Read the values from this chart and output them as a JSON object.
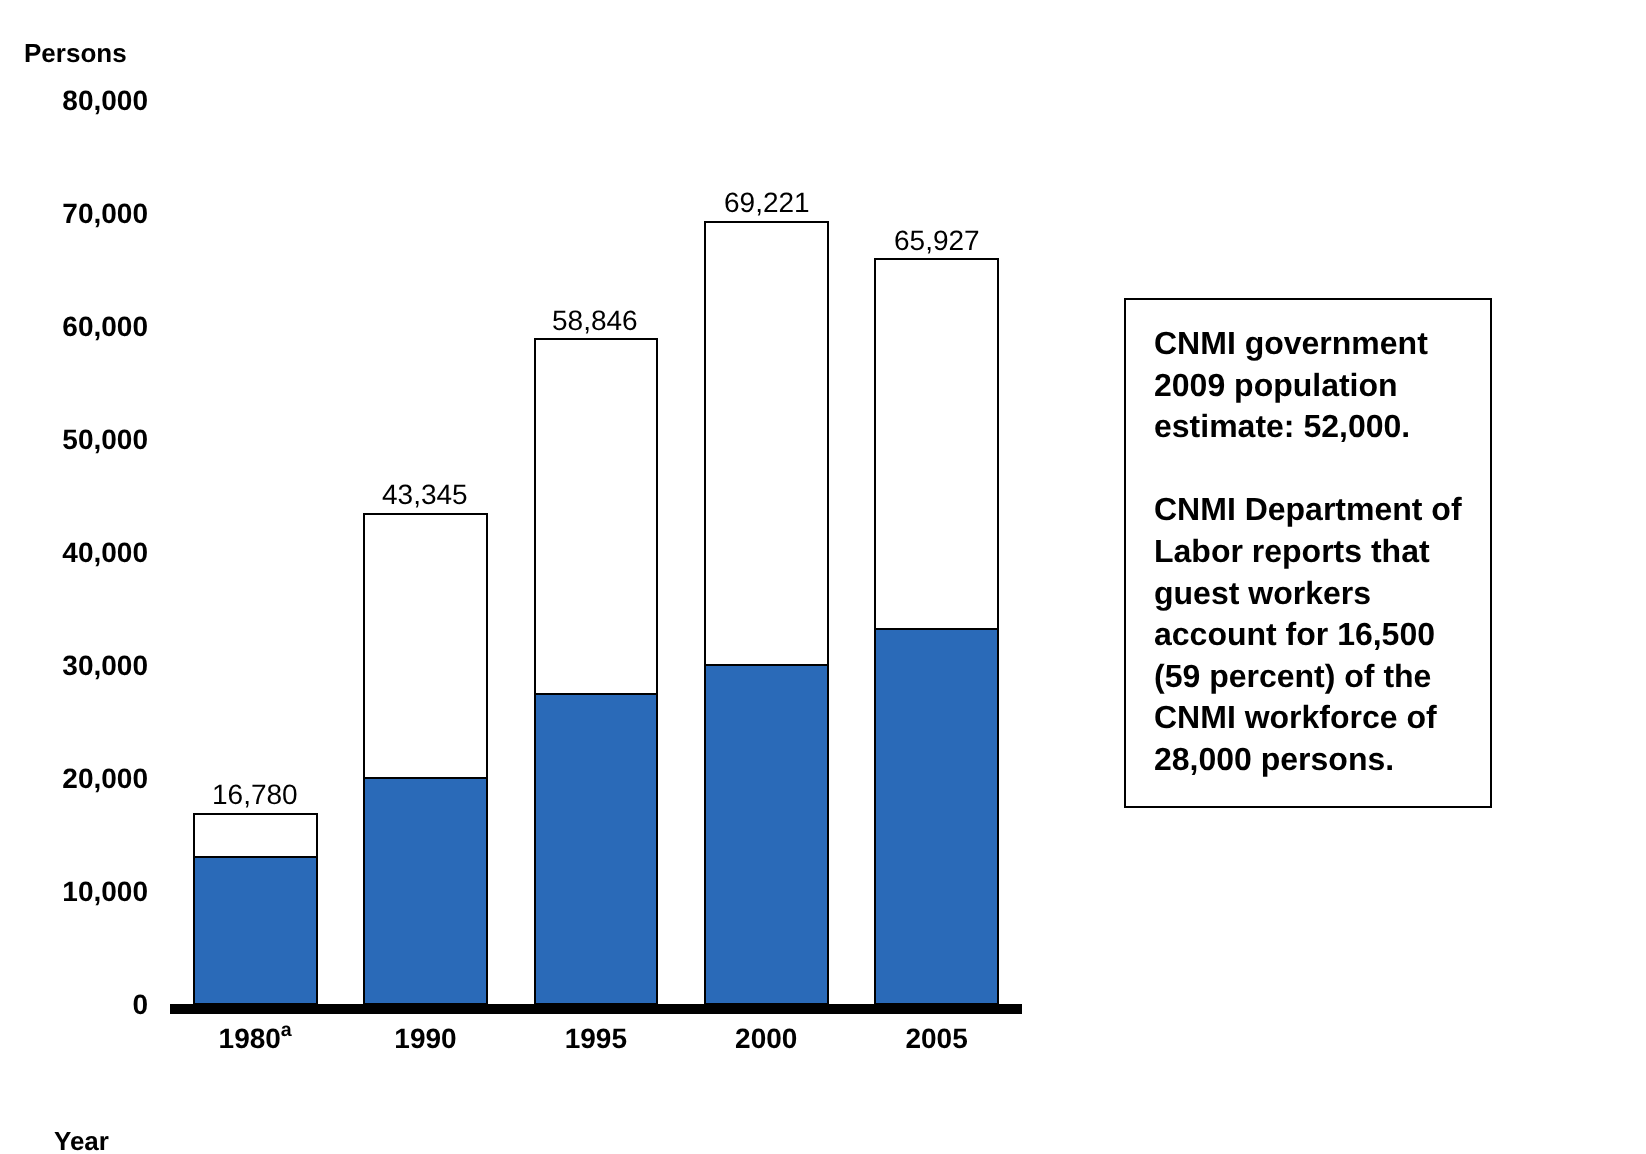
{
  "chart_data": {
    "type": "bar",
    "stacked": true,
    "xlabel": "Year",
    "ylabel": "Persons",
    "categories": [
      "1980$^{a}$",
      "1990",
      "1995",
      "2000",
      "2005"
    ],
    "series": [
      {
        "color": "#2a6ab8",
        "values": [
          13000,
          20000,
          27400,
          30000,
          33200
        ]
      },
      {
        "color": "#ffffff",
        "values": [
          3780,
          23345,
          31446,
          39221,
          32727
        ]
      }
    ],
    "totals": [
      "16,780",
      "43,345",
      "58,846",
      "69,221",
      "65,927"
    ],
    "ylim": [
      0,
      80000
    ],
    "yticks": [
      0,
      {
        "value": 10000,
        "label": "10,000"
      },
      {
        "value": 20000,
        "label": "20,000"
      },
      {
        "value": 30000,
        "label": "30,000"
      },
      {
        "value": 40000,
        "label": "40,000"
      },
      {
        "value": 50000,
        "label": "50,000"
      },
      {
        "value": 60000,
        "label": "60,000"
      },
      {
        "value": 70000,
        "label": "70,000"
      },
      {
        "value": 80000,
        "label": "80,000"
      }
    ],
    "annotations": [
      "CNMI government\n2009 population\nestimate: 52,000.",
      "CNMI Department of\nLabor reports that\nguest workers\naccount for 16,500\n(59 percent) of the\nCNMI workforce of\n28,000 persons."
    ]
  }
}
